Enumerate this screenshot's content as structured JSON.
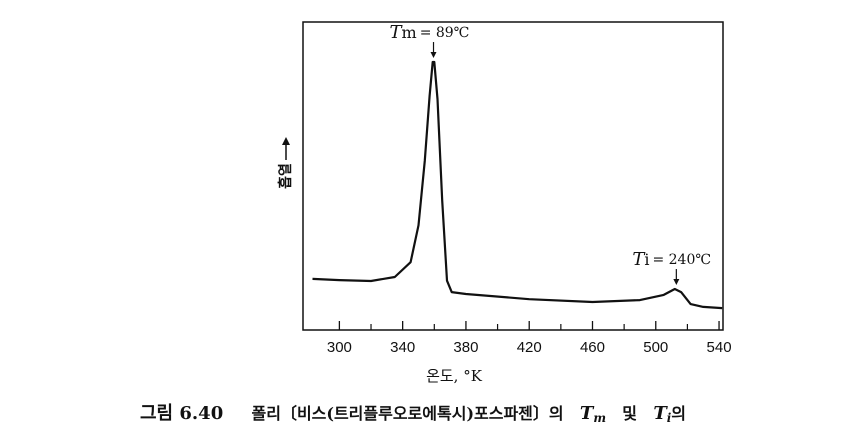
{
  "chart_data": {
    "type": "line",
    "y_label": "흡열",
    "x_label": "온도, °K",
    "x": [
      283,
      300,
      320,
      335,
      345,
      350,
      354,
      357,
      359,
      360,
      362,
      365,
      368,
      371,
      380,
      420,
      460,
      490,
      505,
      512,
      516,
      522,
      530,
      542
    ],
    "values": [
      16.6,
      16.2,
      15.9,
      17.2,
      22,
      34,
      55,
      76,
      87,
      87,
      75,
      42,
      16,
      12.3,
      11.7,
      10,
      9.1,
      9.7,
      11.4,
      13.3,
      12.3,
      8.4,
      7.5,
      7.1
    ],
    "color": "#111111",
    "xlim": [
      277,
      542.5
    ],
    "ylim": [
      0,
      100
    ],
    "xticks": [
      300,
      340,
      380,
      420,
      460,
      500,
      540
    ],
    "x_minor_ticks": [
      320,
      360,
      400,
      440,
      480,
      520
    ],
    "annotations": [
      {
        "symbol": "T",
        "sub": "m",
        "text": "= 89℃",
        "x": 359.5,
        "y": 87
      },
      {
        "symbol": "T",
        "sub": "i",
        "text": "= 240℃",
        "x": 513,
        "y": 13.3
      }
    ],
    "caption": {
      "label": "그림 6.40",
      "text": "폴리〔비스(트리플루오로에톡시)포스파젠〕의",
      "tm": "T",
      "tm_sub": "m",
      "and": "및",
      "ti": "T",
      "ti_sub": "i",
      "end": "의"
    }
  }
}
